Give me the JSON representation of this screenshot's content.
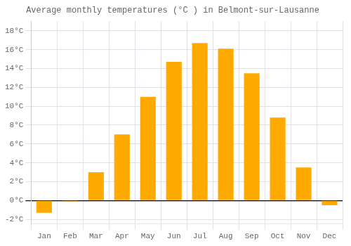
{
  "chart_data": {
    "type": "bar",
    "title": "Average monthly temperatures (°C ) in Belmont-sur-Lausanne",
    "categories": [
      "Jan",
      "Feb",
      "Mar",
      "Apr",
      "May",
      "Jun",
      "Jul",
      "Aug",
      "Sep",
      "Oct",
      "Nov",
      "Dec"
    ],
    "values": [
      -1.3,
      -0.1,
      3.0,
      7.0,
      11.0,
      14.7,
      16.7,
      16.1,
      13.5,
      8.8,
      3.5,
      -0.5
    ],
    "color": "#FFAA00",
    "ylim": [
      -2.5,
      19.0
    ],
    "yticks": [
      {
        "value": -2,
        "label": "-2°C"
      },
      {
        "value": 0,
        "label": "0°C"
      },
      {
        "value": 2,
        "label": "2°C"
      },
      {
        "value": 4,
        "label": "4°C"
      },
      {
        "value": 6,
        "label": "6°C"
      },
      {
        "value": 8,
        "label": "8°C"
      },
      {
        "value": 10,
        "label": "10°C"
      },
      {
        "value": 12,
        "label": "12°C"
      },
      {
        "value": 14,
        "label": "14°C"
      },
      {
        "value": 16,
        "label": "16°C"
      },
      {
        "value": 18,
        "label": "18°C"
      }
    ],
    "grid": true
  }
}
